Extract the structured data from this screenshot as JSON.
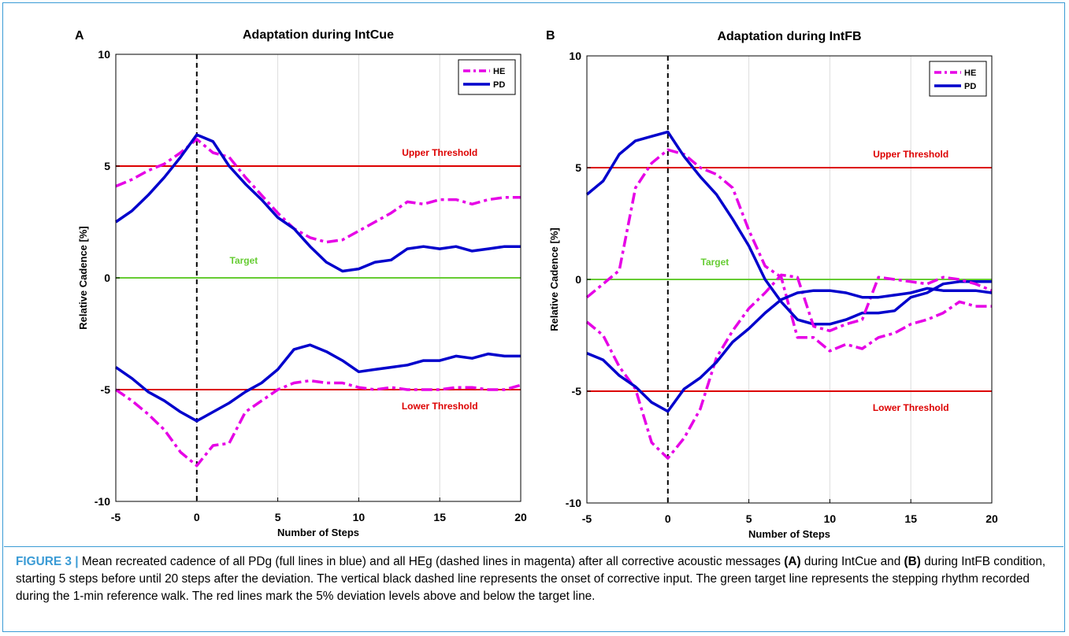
{
  "caption": {
    "figure_label": "FIGURE 3 |",
    "part1": " Mean recreated cadence of all PDg (full lines in blue) and all HEg (dashed lines in magenta) after all corrective acoustic messages ",
    "ref_a": "(A)",
    "part2": " during IntCue and ",
    "ref_b": "(B)",
    "part3": " during IntFB condition, starting 5 steps before until 20 steps after the deviation. The vertical black dashed line represents the onset of corrective input. The green target line represents the stepping rhythm recorded during the 1-min reference walk. The red lines mark the 5% deviation levels above and below the target line."
  },
  "colors": {
    "he": "#e600e6",
    "pd": "#0000cc",
    "threshold": "#dd0000",
    "target": "#66cc33",
    "onset": "#000000",
    "grid": "#dcdcdc",
    "caption_accent": "#3a9bd5"
  },
  "chart_data": [
    {
      "type": "line",
      "panel_label": "A",
      "title": "Adaptation during IntCue",
      "xlabel": "Number of Steps",
      "ylabel": "Relative Cadence [%]",
      "xlim": [
        -5,
        20
      ],
      "ylim": [
        -10,
        10
      ],
      "xticks": [
        -5,
        0,
        5,
        10,
        15,
        20
      ],
      "yticks": [
        -10,
        -5,
        0,
        5,
        10
      ],
      "grid": "vertical",
      "legend": {
        "placement": "top-right",
        "entries": [
          {
            "name": "HE",
            "style": "dashed",
            "color": "#e600e6"
          },
          {
            "name": "PD",
            "style": "solid",
            "color": "#0000cc"
          }
        ]
      },
      "reference_lines": {
        "upper": {
          "y": 5,
          "label": "Upper Threshold"
        },
        "target": {
          "y": 0,
          "label": "Target"
        },
        "lower": {
          "y": -5,
          "label": "Lower Threshold"
        },
        "onset": {
          "x": 0
        }
      },
      "x": [
        -5,
        -4,
        -3,
        -2,
        -1,
        0,
        1,
        2,
        3,
        4,
        5,
        6,
        7,
        8,
        9,
        10,
        11,
        12,
        13,
        14,
        15,
        16,
        17,
        18,
        19,
        20
      ],
      "series": [
        {
          "name": "HE",
          "group": "upper",
          "style": "dashed",
          "values": [
            4.1,
            4.4,
            4.8,
            5.1,
            5.6,
            6.2,
            5.6,
            5.4,
            4.5,
            3.7,
            2.9,
            2.2,
            1.8,
            1.6,
            1.7,
            2.1,
            2.5,
            2.9,
            3.4,
            3.3,
            3.5,
            3.5,
            3.3,
            3.5,
            3.6,
            3.6
          ]
        },
        {
          "name": "PD",
          "group": "upper",
          "style": "solid",
          "values": [
            2.5,
            3.0,
            3.7,
            4.5,
            5.4,
            6.4,
            6.1,
            5.0,
            4.2,
            3.5,
            2.7,
            2.2,
            1.4,
            0.7,
            0.3,
            0.4,
            0.7,
            0.8,
            1.3,
            1.4,
            1.3,
            1.4,
            1.2,
            1.3,
            1.4,
            1.4
          ]
        },
        {
          "name": "HE",
          "group": "lower",
          "style": "dashed",
          "values": [
            -5.0,
            -5.5,
            -6.1,
            -6.8,
            -7.8,
            -8.4,
            -7.5,
            -7.4,
            -6.0,
            -5.5,
            -5.0,
            -4.7,
            -4.6,
            -4.7,
            -4.7,
            -4.9,
            -5.0,
            -4.9,
            -5.0,
            -5.0,
            -5.0,
            -4.9,
            -4.9,
            -5.0,
            -5.0,
            -4.8
          ]
        },
        {
          "name": "PD",
          "group": "lower",
          "style": "solid",
          "values": [
            -4.0,
            -4.5,
            -5.1,
            -5.5,
            -6.0,
            -6.4,
            -6.0,
            -5.6,
            -5.1,
            -4.7,
            -4.1,
            -3.2,
            -3.0,
            -3.3,
            -3.7,
            -4.2,
            -4.1,
            -4.0,
            -3.9,
            -3.7,
            -3.7,
            -3.5,
            -3.6,
            -3.4,
            -3.5,
            -3.5
          ]
        }
      ]
    },
    {
      "type": "line",
      "panel_label": "B",
      "title": "Adaptation during IntFB",
      "xlabel": "Number of Steps",
      "ylabel": "Relative Cadence [%]",
      "xlim": [
        -5,
        20
      ],
      "ylim": [
        -10,
        10
      ],
      "xticks": [
        -5,
        0,
        5,
        10,
        15,
        20
      ],
      "yticks": [
        -10,
        -5,
        0,
        5,
        10
      ],
      "grid": "vertical",
      "legend": {
        "placement": "top-right",
        "entries": [
          {
            "name": "HE",
            "style": "dashed",
            "color": "#e600e6"
          },
          {
            "name": "PD",
            "style": "solid",
            "color": "#0000cc"
          }
        ]
      },
      "reference_lines": {
        "upper": {
          "y": 5,
          "label": "Upper Threshold"
        },
        "target": {
          "y": 0,
          "label": "Target"
        },
        "lower": {
          "y": -5,
          "label": "Lower Threshold"
        },
        "onset": {
          "x": 0
        }
      },
      "x": [
        -5,
        -4,
        -3,
        -2,
        -1,
        0,
        1,
        2,
        3,
        4,
        5,
        6,
        7,
        8,
        9,
        10,
        11,
        12,
        13,
        14,
        15,
        16,
        17,
        18,
        19,
        20
      ],
      "series": [
        {
          "name": "HE",
          "group": "upper",
          "style": "dashed",
          "values": [
            -0.8,
            -0.2,
            0.4,
            4.1,
            5.2,
            5.8,
            5.6,
            5.0,
            4.7,
            4.1,
            2.2,
            0.6,
            0.1,
            -2.6,
            -2.6,
            -3.2,
            -2.9,
            -3.1,
            -2.6,
            -2.4,
            -2.0,
            -1.8,
            -1.5,
            -1.0,
            -1.2,
            -1.2
          ]
        },
        {
          "name": "PD",
          "group": "upper",
          "style": "solid",
          "values": [
            3.8,
            4.4,
            5.6,
            6.2,
            6.4,
            6.6,
            5.5,
            4.6,
            3.8,
            2.7,
            1.5,
            0.0,
            -1.0,
            -1.8,
            -2.0,
            -2.0,
            -1.8,
            -1.5,
            -1.5,
            -1.4,
            -0.8,
            -0.6,
            -0.2,
            -0.1,
            -0.1,
            -0.1
          ]
        },
        {
          "name": "HE",
          "group": "lower",
          "style": "dashed",
          "values": [
            -1.9,
            -2.5,
            -3.9,
            -4.9,
            -7.3,
            -8.0,
            -7.1,
            -5.8,
            -3.5,
            -2.3,
            -1.3,
            -0.6,
            0.2,
            0.1,
            -2.1,
            -2.3,
            -2.0,
            -1.8,
            0.1,
            0.0,
            -0.1,
            -0.2,
            0.1,
            0.0,
            -0.2,
            -0.5
          ]
        },
        {
          "name": "PD",
          "group": "lower",
          "style": "solid",
          "values": [
            -3.3,
            -3.6,
            -4.3,
            -4.8,
            -5.5,
            -5.9,
            -4.9,
            -4.4,
            -3.7,
            -2.8,
            -2.2,
            -1.5,
            -0.9,
            -0.6,
            -0.5,
            -0.5,
            -0.6,
            -0.8,
            -0.8,
            -0.7,
            -0.6,
            -0.4,
            -0.5,
            -0.5,
            -0.5,
            -0.6
          ]
        }
      ]
    }
  ]
}
